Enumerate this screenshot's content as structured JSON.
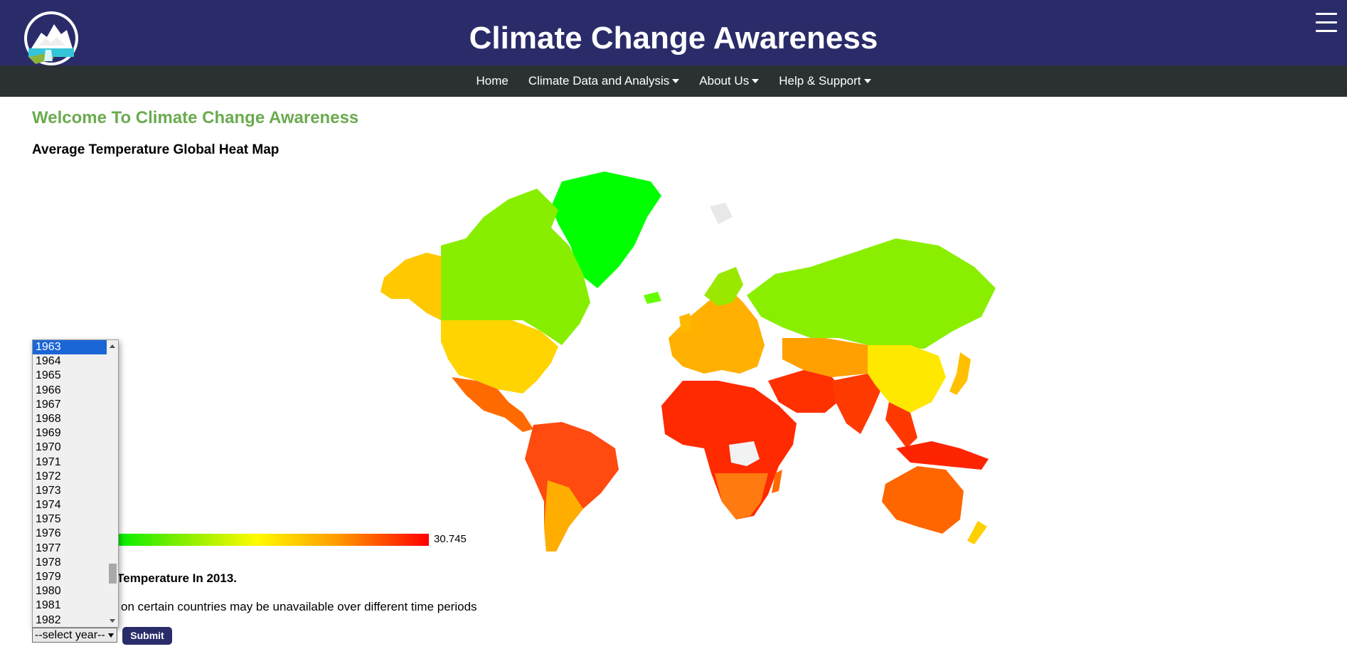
{
  "header": {
    "site_title": "Climate Change Awareness",
    "logo_name": "mountain-logo",
    "menu_icon": "hamburger-icon"
  },
  "nav": {
    "items": [
      {
        "label": "Home",
        "dropdown": false
      },
      {
        "label": "Climate Data and Analysis",
        "dropdown": true
      },
      {
        "label": "About Us",
        "dropdown": true
      },
      {
        "label": "Help & Support",
        "dropdown": true
      }
    ]
  },
  "main": {
    "welcome": "Welcome To Climate Change Awareness",
    "map_heading": "Average Temperature Global Heat Map",
    "legend_max": "30.745",
    "caption": "y Temperature In 2013.",
    "note": "on certain countries may be unavailable over different time periods"
  },
  "year_select": {
    "placeholder": "--select year--",
    "options": [
      "1963",
      "1964",
      "1965",
      "1966",
      "1967",
      "1968",
      "1969",
      "1970",
      "1971",
      "1972",
      "1973",
      "1974",
      "1975",
      "1976",
      "1977",
      "1978",
      "1979",
      "1980",
      "1981",
      "1982"
    ],
    "highlighted": "1963"
  },
  "submit_label": "Submit",
  "colors": {
    "header_bg": "#2a2c6a",
    "nav_bg": "#2b3033",
    "welcome_green": "#6aab4f",
    "heat_cold": "#00ee00",
    "heat_mid": "#fffb00",
    "heat_hot": "#ff0000",
    "no_data": "#f2f2f2"
  }
}
